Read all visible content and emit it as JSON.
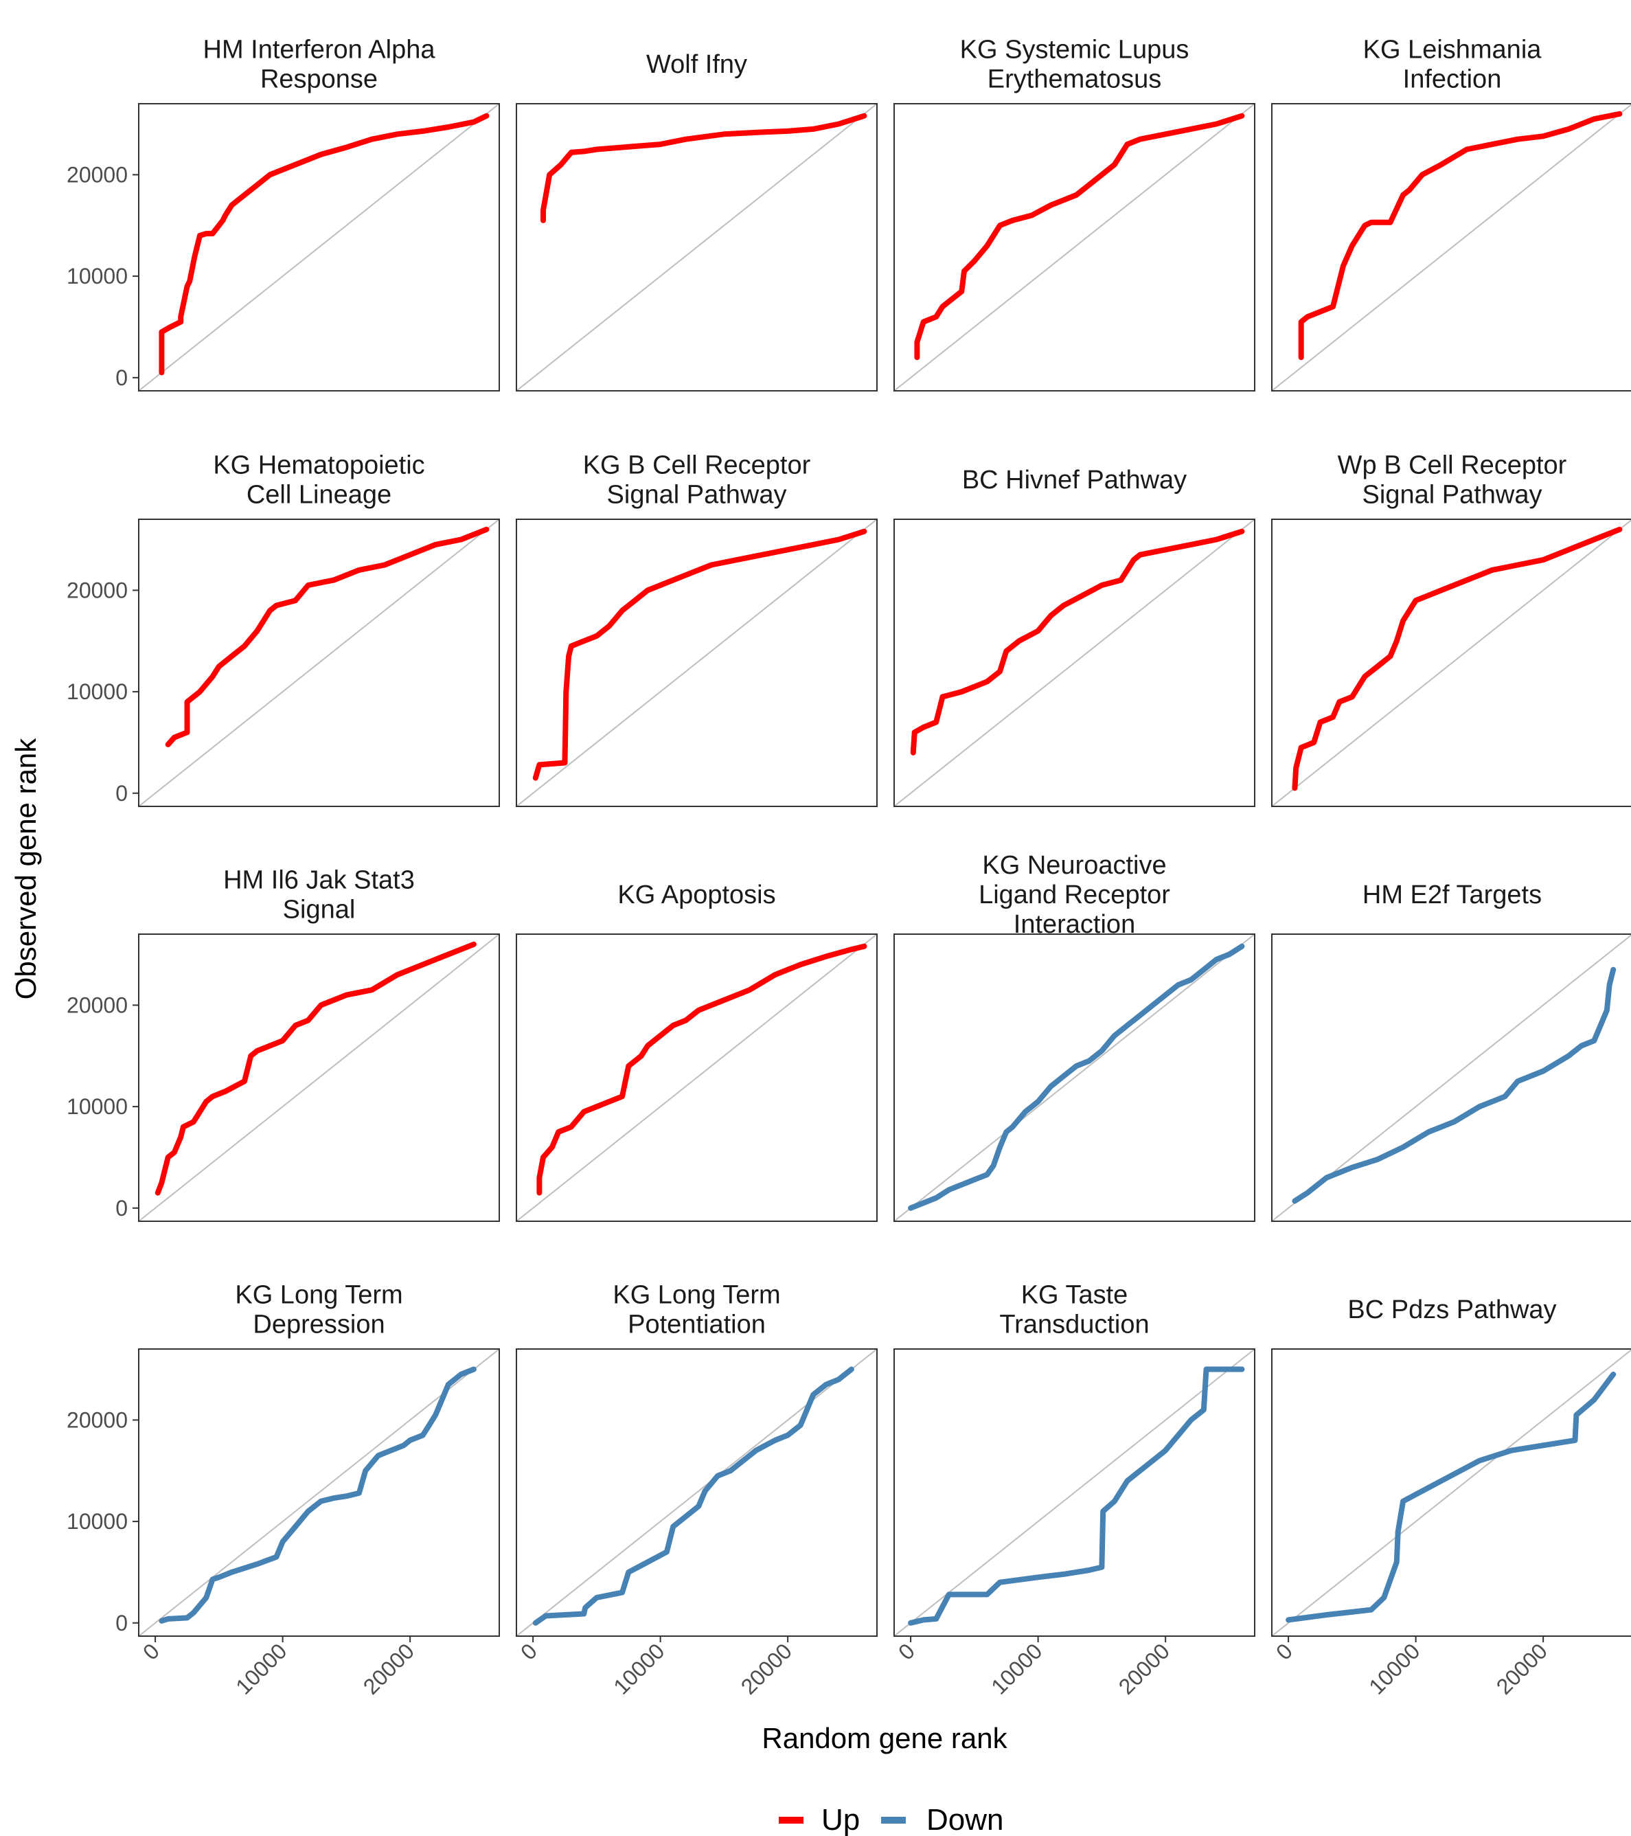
{
  "chart_data": {
    "type": "line",
    "xlabel": "Random gene rank",
    "ylabel": "Observed gene rank",
    "xlim": [
      -1300,
      27000
    ],
    "ylim": [
      -1300,
      27000
    ],
    "x_ticks": [
      0,
      10000,
      20000
    ],
    "y_ticks": [
      0,
      10000,
      20000
    ],
    "x_tick_labels": [
      "0",
      "10000",
      "20000"
    ],
    "y_tick_labels": [
      "0",
      "10000",
      "20000"
    ],
    "reference_line": "y = x",
    "grid": false,
    "legend": {
      "position": "bottom",
      "entries": [
        {
          "label": "Up",
          "color": "#ff0000"
        },
        {
          "label": "Down",
          "color": "#4682b4"
        }
      ]
    },
    "panels": [
      {
        "title": [
          "HM Interferon Alpha",
          "Response"
        ],
        "direction": "Up",
        "x": [
          500,
          500,
          1200,
          2000,
          2000,
          2500,
          2700,
          3100,
          3500,
          4000,
          4500,
          5300,
          5500,
          6000,
          6500,
          7000,
          8000,
          9000,
          10000,
          11000,
          13000,
          15000,
          17000,
          19000,
          21000,
          23000,
          25000,
          26000
        ],
        "y": [
          500,
          4500,
          5000,
          5500,
          6000,
          9000,
          9500,
          12000,
          14000,
          14200,
          14200,
          15500,
          16000,
          17000,
          17500,
          18000,
          19000,
          20000,
          20500,
          21000,
          22000,
          22700,
          23500,
          24000,
          24300,
          24700,
          25200,
          25800
        ]
      },
      {
        "title": [
          "Wolf Ifny"
        ],
        "direction": "Up",
        "x": [
          800,
          800,
          1300,
          2200,
          3000,
          4000,
          5000,
          6000,
          8000,
          10000,
          12000,
          15000,
          18000,
          20000,
          22000,
          24000,
          26000
        ],
        "y": [
          15500,
          16500,
          20000,
          21000,
          22200,
          22300,
          22500,
          22600,
          22800,
          23000,
          23500,
          24000,
          24200,
          24300,
          24500,
          25000,
          25800
        ]
      },
      {
        "title": [
          "KG Systemic Lupus",
          "Erythematosus"
        ],
        "direction": "Up",
        "x": [
          500,
          500,
          1000,
          2000,
          2500,
          3500,
          4000,
          4200,
          5000,
          6000,
          7000,
          8000,
          9500,
          11000,
          12000,
          13000,
          14000,
          15000,
          16000,
          17000,
          18000,
          20000,
          22000,
          24000,
          26000
        ],
        "y": [
          2000,
          3500,
          5500,
          6000,
          7000,
          8000,
          8500,
          10500,
          11500,
          13000,
          15000,
          15500,
          16000,
          17000,
          17500,
          18000,
          19000,
          20000,
          21000,
          23000,
          23500,
          24000,
          24500,
          25000,
          25800
        ]
      },
      {
        "title": [
          "KG Leishmania",
          "Infection"
        ],
        "direction": "Up",
        "x": [
          1000,
          1000,
          1500,
          2500,
          3500,
          4300,
          5000,
          5500,
          6000,
          6500,
          8000,
          9000,
          9500,
          10500,
          12000,
          14000,
          16000,
          18000,
          20000,
          22000,
          24000,
          26000
        ],
        "y": [
          2000,
          5500,
          6000,
          6500,
          7000,
          11000,
          13000,
          14000,
          15000,
          15300,
          15300,
          18000,
          18500,
          20000,
          21000,
          22500,
          23000,
          23500,
          23800,
          24500,
          25500,
          26000
        ]
      },
      {
        "title": [
          "KG Hematopoietic",
          "Cell Lineage"
        ],
        "direction": "Up",
        "x": [
          1000,
          1500,
          2500,
          2500,
          3500,
          4500,
          5000,
          6000,
          7000,
          8000,
          9000,
          9500,
          11000,
          12000,
          14000,
          16000,
          18000,
          20000,
          22000,
          24000,
          26000
        ],
        "y": [
          4800,
          5500,
          6000,
          9000,
          10000,
          11500,
          12500,
          13500,
          14500,
          16000,
          18000,
          18500,
          19000,
          20500,
          21000,
          22000,
          22500,
          23500,
          24500,
          25000,
          26000
        ]
      },
      {
        "title": [
          "KG B Cell Receptor",
          "Signal Pathway"
        ],
        "direction": "Up",
        "x": [
          200,
          500,
          2500,
          2600,
          2800,
          3000,
          4000,
          5000,
          6000,
          7000,
          8000,
          9000,
          10000,
          12000,
          14000,
          16000,
          18000,
          20000,
          22000,
          24000,
          26000
        ],
        "y": [
          1500,
          2800,
          3000,
          10000,
          13500,
          14500,
          15000,
          15500,
          16500,
          18000,
          19000,
          20000,
          20500,
          21500,
          22500,
          23000,
          23500,
          24000,
          24500,
          25000,
          25800
        ]
      },
      {
        "title": [
          "BC Hivnef Pathway"
        ],
        "direction": "Up",
        "x": [
          200,
          300,
          1000,
          2000,
          2500,
          4000,
          6000,
          7000,
          7500,
          8500,
          10000,
          11000,
          12000,
          13500,
          15000,
          16500,
          17500,
          18000,
          20000,
          22000,
          24000,
          26000
        ],
        "y": [
          4000,
          6000,
          6500,
          7000,
          9500,
          10000,
          11000,
          12000,
          14000,
          15000,
          16000,
          17500,
          18500,
          19500,
          20500,
          21000,
          23000,
          23500,
          24000,
          24500,
          25000,
          25800
        ]
      },
      {
        "title": [
          "Wp B Cell Receptor",
          "Signal Pathway"
        ],
        "direction": "Up",
        "x": [
          500,
          600,
          1000,
          2000,
          2500,
          3500,
          4000,
          5000,
          6000,
          7000,
          8000,
          8500,
          9000,
          10000,
          11000,
          12000,
          14000,
          16000,
          18000,
          20000,
          22000,
          24000,
          26000
        ],
        "y": [
          500,
          2500,
          4500,
          5000,
          7000,
          7500,
          9000,
          9500,
          11500,
          12500,
          13500,
          15000,
          17000,
          19000,
          19500,
          20000,
          21000,
          22000,
          22500,
          23000,
          24000,
          25000,
          26000
        ]
      },
      {
        "title": [
          "HM Il6 Jak Stat3",
          "Signal"
        ],
        "direction": "Up",
        "x": [
          200,
          500,
          1000,
          1500,
          2000,
          2200,
          3000,
          4000,
          4500,
          5500,
          7000,
          7500,
          8000,
          10000,
          11000,
          12000,
          13000,
          15000,
          17000,
          19000,
          21000,
          23000,
          25000
        ],
        "y": [
          1500,
          2500,
          5000,
          5500,
          7000,
          8000,
          8500,
          10500,
          11000,
          11500,
          12500,
          15000,
          15500,
          16500,
          18000,
          18500,
          20000,
          21000,
          21500,
          23000,
          24000,
          25000,
          26000
        ]
      },
      {
        "title": [
          "KG Apoptosis"
        ],
        "direction": "Up",
        "x": [
          500,
          500,
          800,
          1500,
          2000,
          3000,
          4000,
          5000,
          6000,
          7000,
          7500,
          8500,
          9000,
          10000,
          11000,
          12000,
          13000,
          15000,
          17000,
          19000,
          21000,
          23000,
          25000,
          26000
        ],
        "y": [
          1500,
          3000,
          5000,
          6000,
          7500,
          8000,
          9500,
          10000,
          10500,
          11000,
          14000,
          15000,
          16000,
          17000,
          18000,
          18500,
          19500,
          20500,
          21500,
          23000,
          24000,
          24800,
          25500,
          25800
        ]
      },
      {
        "title": [
          "KG Neuroactive",
          "Ligand Receptor",
          "Interaction"
        ],
        "direction": "Down",
        "x": [
          0,
          1000,
          2000,
          3000,
          4000,
          5000,
          6000,
          6500,
          7000,
          7500,
          8000,
          9000,
          10000,
          11000,
          12000,
          13000,
          14000,
          15000,
          16000,
          17000,
          18000,
          19000,
          20000,
          21000,
          22000,
          23000,
          24000,
          25000,
          26000
        ],
        "y": [
          0,
          500,
          1000,
          1800,
          2300,
          2800,
          3300,
          4200,
          6000,
          7500,
          8000,
          9500,
          10500,
          12000,
          13000,
          14000,
          14500,
          15500,
          17000,
          18000,
          19000,
          20000,
          21000,
          22000,
          22500,
          23500,
          24500,
          25000,
          25800
        ]
      },
      {
        "title": [
          "HM E2f Targets"
        ],
        "direction": "Down",
        "x": [
          500,
          1500,
          3000,
          5000,
          7000,
          9000,
          11000,
          13000,
          15000,
          17000,
          18000,
          20000,
          22000,
          23000,
          24000,
          24500,
          25000,
          25200,
          25500
        ],
        "y": [
          700,
          1500,
          3000,
          4000,
          4800,
          6000,
          7500,
          8500,
          10000,
          11000,
          12500,
          13500,
          15000,
          16000,
          16500,
          18000,
          19500,
          22000,
          23500
        ]
      },
      {
        "title": [
          "KG Long Term",
          "Depression"
        ],
        "direction": "Down",
        "x": [
          500,
          1000,
          2500,
          3000,
          4000,
          4500,
          5000,
          6000,
          8000,
          9500,
          10000,
          11000,
          12000,
          13000,
          14000,
          15000,
          16000,
          16500,
          17500,
          18500,
          19500,
          20000,
          21000,
          21500,
          22000,
          22500,
          23000,
          24000,
          25000
        ],
        "y": [
          200,
          400,
          500,
          1000,
          2500,
          4300,
          4500,
          5000,
          5800,
          6500,
          8000,
          9500,
          11000,
          12000,
          12300,
          12500,
          12800,
          15000,
          16500,
          17000,
          17500,
          18000,
          18500,
          19500,
          20500,
          22000,
          23500,
          24500,
          25000
        ]
      },
      {
        "title": [
          "KG Long Term",
          "Potentiation"
        ],
        "direction": "Down",
        "x": [
          200,
          1000,
          4000,
          4100,
          5000,
          7000,
          7500,
          9000,
          10500,
          11000,
          12000,
          13000,
          13500,
          14500,
          15500,
          16500,
          17500,
          19000,
          20000,
          21000,
          21500,
          22000,
          23000,
          24000,
          25000
        ],
        "y": [
          0,
          700,
          900,
          1500,
          2500,
          3000,
          5000,
          6000,
          7000,
          9500,
          10500,
          11500,
          13000,
          14500,
          15000,
          16000,
          17000,
          18000,
          18500,
          19500,
          21000,
          22500,
          23500,
          24000,
          25000
        ]
      },
      {
        "title": [
          "KG Taste",
          "Transduction"
        ],
        "direction": "Down",
        "x": [
          0,
          1000,
          2000,
          3000,
          6000,
          7000,
          10000,
          12000,
          14000,
          15000,
          15100,
          16000,
          17000,
          18000,
          19000,
          20000,
          21000,
          22000,
          23000,
          23200,
          24000,
          26000
        ],
        "y": [
          0,
          300,
          400,
          2800,
          2800,
          4000,
          4500,
          4800,
          5200,
          5500,
          11000,
          12000,
          14000,
          15000,
          16000,
          17000,
          18500,
          20000,
          21000,
          25000,
          25000,
          25000
        ]
      },
      {
        "title": [
          "BC Pdzs Pathway"
        ],
        "direction": "Down",
        "x": [
          0,
          3000,
          6500,
          7500,
          8500,
          8600,
          9000,
          12000,
          15000,
          17500,
          22500,
          22600,
          24000,
          25500
        ],
        "y": [
          300,
          800,
          1300,
          2500,
          6000,
          9000,
          12000,
          14000,
          16000,
          17000,
          18000,
          20500,
          22000,
          24500
        ]
      }
    ]
  }
}
